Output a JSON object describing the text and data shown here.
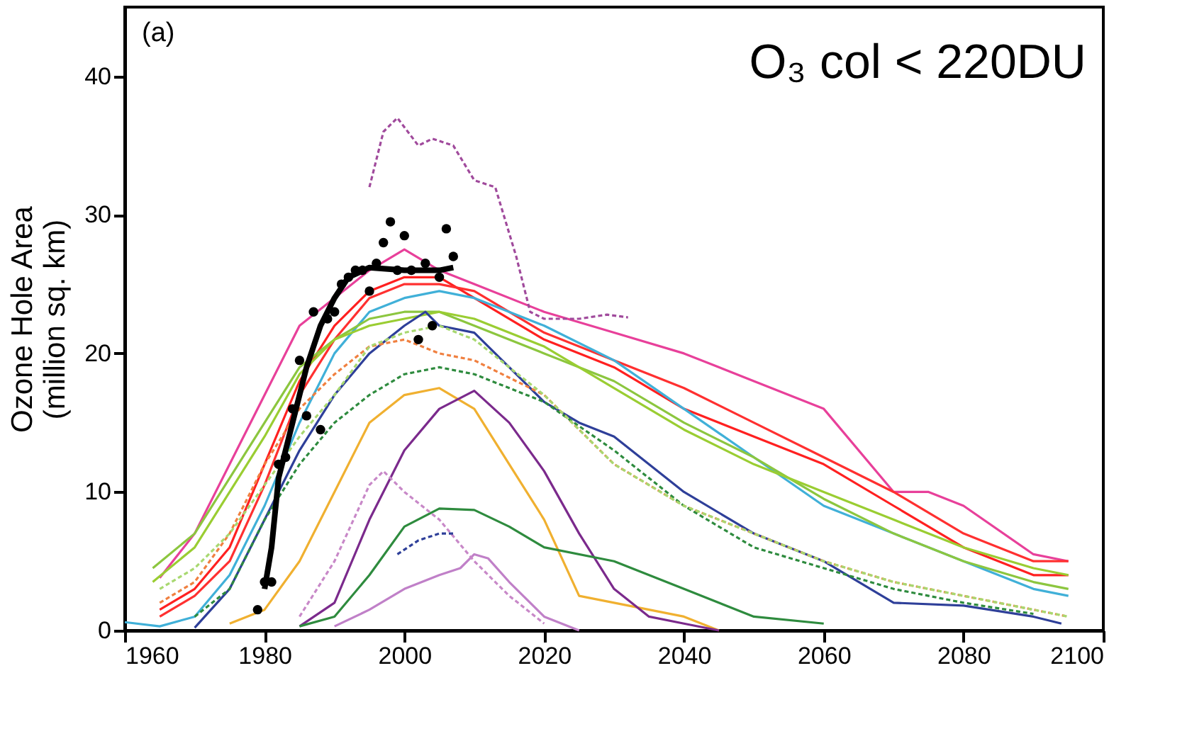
{
  "chart_data": {
    "type": "line",
    "ylabel": "Ozone Hole Area\n(million sq. km)",
    "annotations": [
      "(a)",
      "O₃ col <  220DU"
    ],
    "xlim": [
      1960,
      2100
    ],
    "xticks": [
      1960,
      1980,
      2000,
      2020,
      2040,
      2060,
      2080,
      2100
    ],
    "ylim": [
      0,
      45
    ],
    "yticks": [
      0,
      10,
      20,
      30,
      40
    ],
    "grid": false,
    "marker": "none",
    "series": [
      {
        "color": "#e8409a",
        "x": [
          1965,
          1970,
          1975,
          1980,
          1985,
          1990,
          1995,
          2000,
          2005,
          2010,
          2020,
          2030,
          2040,
          2050,
          2060,
          2070,
          2075,
          2080,
          2090,
          2095
        ],
        "values": [
          3.8,
          7,
          12,
          17,
          22,
          24,
          26,
          27.5,
          26,
          25,
          23,
          21.5,
          20,
          18,
          16,
          10,
          10,
          9,
          5.5,
          5
        ]
      },
      {
        "color": "#ff2020",
        "x": [
          1965,
          1970,
          1975,
          1980,
          1985,
          1990,
          1995,
          2000,
          2005,
          2010,
          2020,
          2030,
          2040,
          2050,
          2060,
          2070,
          2080,
          2090,
          2095
        ],
        "values": [
          1.5,
          3,
          6,
          12,
          18,
          22,
          24.5,
          25.5,
          25.5,
          24,
          21,
          19,
          16,
          14,
          12,
          9,
          6,
          4,
          4
        ]
      },
      {
        "color": "#ff3030",
        "x": [
          1965,
          1970,
          1975,
          1980,
          1985,
          1990,
          1995,
          2000,
          2005,
          2010,
          2020,
          2030,
          2040,
          2050,
          2060,
          2070,
          2080,
          2090,
          2095
        ],
        "values": [
          1,
          2.5,
          5,
          10.5,
          17,
          21,
          24,
          25,
          25,
          24.5,
          21.5,
          19.5,
          17.5,
          15,
          12.5,
          10,
          7,
          5,
          5
        ]
      },
      {
        "color": "#40b0d8",
        "x": [
          1960,
          1965,
          1970,
          1975,
          1980,
          1985,
          1990,
          1995,
          2000,
          2005,
          2010,
          2020,
          2030,
          2040,
          2050,
          2060,
          2070,
          2080,
          2090,
          2095
        ],
        "values": [
          0.6,
          0.3,
          1,
          4,
          9,
          15,
          20,
          23,
          24,
          24.5,
          24,
          22,
          19.5,
          16,
          12.5,
          9,
          7,
          5,
          3,
          2.5
        ]
      },
      {
        "color": "#8cc63f",
        "x": [
          1964,
          1970,
          1975,
          1980,
          1985,
          1990,
          1995,
          2000,
          2005,
          2010,
          2020,
          2030,
          2040,
          2050,
          2060,
          2070,
          2080,
          2090,
          2095
        ],
        "values": [
          4.5,
          7,
          11,
          15,
          19,
          21,
          22.5,
          23,
          23,
          22,
          20,
          18,
          15,
          12.5,
          9.5,
          7,
          5,
          3.5,
          3
        ]
      },
      {
        "color": "#9acd32",
        "x": [
          1964,
          1970,
          1975,
          1980,
          1985,
          1990,
          1995,
          2000,
          2005,
          2010,
          2020,
          2030,
          2040,
          2050,
          2060,
          2070,
          2080,
          2090,
          2095
        ],
        "values": [
          3.5,
          6,
          10,
          14,
          18.5,
          21,
          22,
          22.5,
          23,
          22.5,
          20.5,
          17.5,
          14.5,
          12,
          10,
          8,
          6,
          4.5,
          4
        ]
      },
      {
        "color": "#2e3f99",
        "x": [
          1970,
          1975,
          1980,
          1985,
          1990,
          1995,
          2000,
          2003,
          2005,
          2010,
          2015,
          2020,
          2025,
          2030,
          2040,
          2050,
          2060,
          2070,
          2080,
          2090,
          2094
        ],
        "values": [
          0.2,
          3,
          8,
          13,
          17,
          20,
          22,
          23,
          22,
          21.5,
          19,
          16.5,
          15,
          14,
          10,
          7,
          5,
          2,
          1.8,
          1,
          0.5
        ]
      },
      {
        "color": "#f0b030",
        "x": [
          1975,
          1980,
          1985,
          1990,
          1995,
          2000,
          2005,
          2010,
          2015,
          2020,
          2025,
          2030,
          2040,
          2045
        ],
        "values": [
          0.5,
          1.5,
          5,
          10,
          15,
          17,
          17.5,
          16,
          12,
          8,
          2.5,
          2,
          1,
          0
        ]
      },
      {
        "color": "#7b2a8c",
        "x": [
          1985,
          1990,
          1995,
          2000,
          2005,
          2010,
          2015,
          2020,
          2025,
          2030,
          2035,
          2040,
          2045
        ],
        "values": [
          0.3,
          2,
          8,
          13,
          16,
          17.3,
          15,
          11.5,
          7,
          3,
          1,
          0.5,
          0
        ]
      },
      {
        "color": "#2e8b3e",
        "x": [
          1985,
          1990,
          1995,
          2000,
          2005,
          2010,
          2015,
          2020,
          2030,
          2040,
          2050,
          2060
        ],
        "values": [
          0.3,
          1,
          4,
          7.5,
          8.8,
          8.7,
          7.5,
          6,
          5,
          3,
          1,
          0.5
        ]
      },
      {
        "color": "#c080c8",
        "x": [
          1990,
          1995,
          2000,
          2005,
          2008,
          2010,
          2012,
          2015,
          2020,
          2025
        ],
        "values": [
          0.3,
          1.5,
          3,
          4,
          4.5,
          5.5,
          5.2,
          3.5,
          1,
          0
        ]
      },
      {
        "color": "#a04a9c",
        "line_style": "dashed",
        "x": [
          1995,
          1997,
          1999,
          2002,
          2004,
          2007,
          2010,
          2013,
          2016,
          2018,
          2020,
          2025,
          2029,
          2032
        ],
        "values": [
          32,
          36,
          37,
          35,
          35.5,
          35,
          32.5,
          32,
          27,
          23,
          22.5,
          22.5,
          22.8,
          22.6
        ]
      },
      {
        "color": "#c888c8",
        "line_style": "dashed",
        "x": [
          1985,
          1990,
          1995,
          1997,
          2000,
          2005,
          2010,
          2015,
          2020
        ],
        "values": [
          1,
          5,
          10.5,
          11.5,
          10,
          8,
          5,
          2.5,
          0.5
        ]
      },
      {
        "color": "#f08040",
        "line_style": "dashed",
        "x": [
          1965,
          1970,
          1975,
          1980,
          1985,
          1990,
          1995,
          2000,
          2005,
          2010,
          2020,
          2030,
          2040,
          2050,
          2060,
          2070,
          2080,
          2090,
          2095
        ],
        "values": [
          2,
          3.5,
          7,
          12,
          16,
          18.5,
          20.5,
          21,
          20,
          19.5,
          17,
          12,
          9,
          7,
          5,
          3.5,
          2.5,
          1.5,
          1
        ]
      },
      {
        "color": "#2e8b3e",
        "line_style": "dashed",
        "x": [
          1970,
          1975,
          1980,
          1985,
          1990,
          1995,
          2000,
          2005,
          2010,
          2020,
          2030,
          2040,
          2050,
          2060,
          2070,
          2080,
          2090
        ],
        "values": [
          1,
          3,
          8,
          12,
          15,
          17,
          18.5,
          19,
          18.5,
          16.5,
          13,
          9,
          6,
          4.5,
          3,
          2,
          1.2
        ]
      },
      {
        "color": "#a8d870",
        "line_style": "dashed",
        "x": [
          1965,
          1970,
          1975,
          1980,
          1985,
          1990,
          1995,
          2000,
          2005,
          2010,
          2020,
          2030,
          2040,
          2050,
          2060,
          2070,
          2080,
          2090,
          2095
        ],
        "values": [
          3,
          4.5,
          7,
          10.5,
          14,
          17,
          20.5,
          21.5,
          22,
          21,
          17,
          12,
          9,
          7,
          5,
          3.5,
          2.5,
          1.5,
          1
        ]
      },
      {
        "color": "#2e3f99",
        "line_style": "dashed",
        "x": [
          1999,
          2002,
          2005,
          2007
        ],
        "values": [
          5.5,
          6.5,
          7,
          7
        ]
      },
      {
        "color": "#000000",
        "x": [
          1980,
          1981,
          1982,
          1984,
          1986,
          1988,
          1990,
          1992,
          1995,
          2000,
          2005,
          2007
        ],
        "values": [
          3,
          6,
          11,
          15,
          19,
          22,
          24,
          25.5,
          26.2,
          26,
          26,
          26.2
        ]
      },
      {
        "type": "scatter",
        "marker": "circle",
        "color": "#000000",
        "x": [
          1979,
          1980,
          1981,
          1982,
          1983,
          1984,
          1985,
          1986,
          1987,
          1988,
          1989,
          1990,
          1991,
          1992,
          1993,
          1994,
          1995,
          1996,
          1997,
          1998,
          1999,
          2000,
          2001,
          2002,
          2003,
          2004,
          2005,
          2006,
          2007
        ],
        "values": [
          1.5,
          3.5,
          3.5,
          12,
          12.5,
          16,
          19.5,
          15.5,
          23,
          14.5,
          22.5,
          23,
          25,
          25.5,
          26,
          26,
          24.5,
          26.5,
          28,
          29.5,
          26,
          28.5,
          26,
          21,
          26.5,
          22,
          25.5,
          29,
          27
        ]
      }
    ]
  }
}
